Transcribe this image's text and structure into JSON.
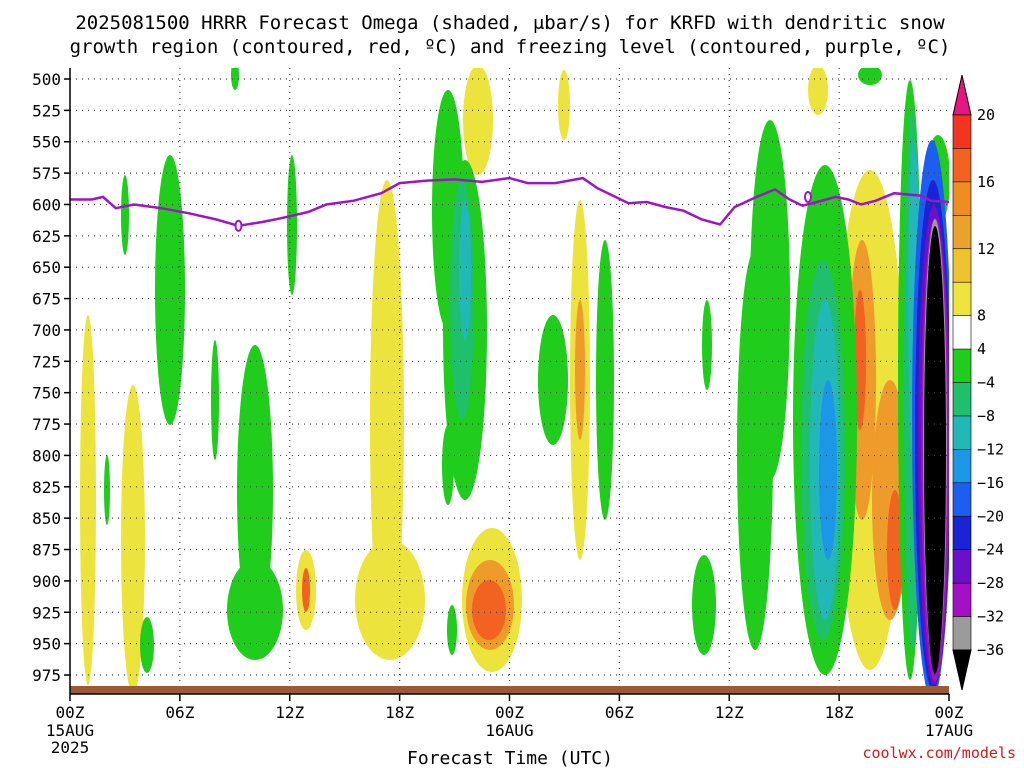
{
  "chart_data": {
    "type": "heatmap",
    "title_lines": [
      "2025081500 HRRR Forecast Omega (shaded, μbar/s) for KRFD with dendritic snow",
      "growth region (contoured, red, ºC) and freezing level (contoured, purple, ºC)"
    ],
    "xlabel": "Forecast Time (UTC)",
    "credit": "coolwx.com/models",
    "x_hours": [
      0,
      6,
      12,
      18,
      24,
      30,
      36,
      42,
      48
    ],
    "x_tick_labels": [
      "00Z",
      "06Z",
      "12Z",
      "18Z",
      "00Z",
      "06Z",
      "12Z",
      "18Z",
      "00Z"
    ],
    "x_date_labels": [
      {
        "hour": 0,
        "lines": [
          "15AUG",
          "2025"
        ]
      },
      {
        "hour": 24,
        "lines": [
          "16AUG"
        ]
      },
      {
        "hour": 48,
        "lines": [
          "17AUG"
        ]
      }
    ],
    "y_levels_hpa": [
      500,
      525,
      550,
      575,
      600,
      625,
      650,
      675,
      700,
      725,
      750,
      775,
      800,
      825,
      850,
      875,
      900,
      925,
      950,
      975
    ],
    "ylim": [
      500,
      985
    ],
    "xlim": [
      0,
      48
    ],
    "grid": true,
    "colorbar": {
      "labels": [
        "20",
        "16",
        "12",
        "8",
        "4",
        "−4",
        "−8",
        "−12",
        "−16",
        "−20",
        "−24",
        "−28",
        "−32",
        "−36"
      ],
      "colors_top_to_bottom": [
        "#e7157f",
        "#f2351f",
        "#f26322",
        "#ef8c22",
        "#e9a22c",
        "#ecc42f",
        "#efe43d",
        "#ffffff",
        "#20cc1c",
        "#1fbf6c",
        "#22b8b8",
        "#1c96e6",
        "#1c5ef0",
        "#1a23d6",
        "#6a10c8",
        "#a610c4",
        "#9b9b9b",
        "#000000"
      ]
    },
    "freezing_level": {
      "color": "#9c16c6",
      "points": [
        [
          0,
          596
        ],
        [
          1.2,
          596
        ],
        [
          1.8,
          594
        ],
        [
          2.5,
          603
        ],
        [
          3.5,
          600
        ],
        [
          5,
          603
        ],
        [
          6.5,
          607
        ],
        [
          8,
          612
        ],
        [
          9.2,
          617
        ],
        [
          10.5,
          614
        ],
        [
          11.5,
          611
        ],
        [
          13,
          606
        ],
        [
          14,
          600
        ],
        [
          15.5,
          597
        ],
        [
          17,
          591
        ],
        [
          18,
          583
        ],
        [
          19.5,
          581
        ],
        [
          21,
          580
        ],
        [
          22.5,
          582
        ],
        [
          24,
          579
        ],
        [
          25,
          583
        ],
        [
          26.5,
          583
        ],
        [
          28,
          579
        ],
        [
          28.8,
          587
        ],
        [
          29.5,
          592
        ],
        [
          30.5,
          599
        ],
        [
          31.5,
          598
        ],
        [
          32.5,
          602
        ],
        [
          33.5,
          605
        ],
        [
          34.5,
          612
        ],
        [
          35.5,
          616
        ],
        [
          36.3,
          602
        ],
        [
          37.5,
          594
        ],
        [
          38.5,
          588
        ],
        [
          39.3,
          596
        ],
        [
          40,
          601
        ],
        [
          40.8,
          598
        ],
        [
          41.8,
          594
        ],
        [
          42.5,
          596
        ],
        [
          43.2,
          600
        ],
        [
          44,
          597
        ],
        [
          45,
          591
        ],
        [
          46.5,
          593
        ],
        [
          47,
          597
        ],
        [
          48,
          598
        ]
      ],
      "labels": [
        [
          9.2,
          617
        ],
        [
          40.3,
          594
        ]
      ]
    },
    "ground_color": "#9c5a34"
  }
}
